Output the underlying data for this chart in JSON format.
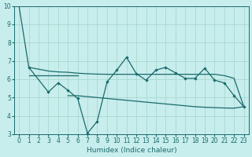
{
  "xlabel": "Humidex (Indice chaleur)",
  "background_color": "#c8eded",
  "grid_color": "#a8d8d0",
  "line_color": "#1a6b6b",
  "xlim": [
    -0.5,
    23.5
  ],
  "ylim": [
    3,
    10
  ],
  "yticks": [
    3,
    4,
    5,
    6,
    7,
    8,
    9,
    10
  ],
  "xticks": [
    0,
    1,
    2,
    3,
    4,
    5,
    6,
    7,
    8,
    9,
    10,
    11,
    12,
    13,
    14,
    15,
    16,
    17,
    18,
    19,
    20,
    21,
    22,
    23
  ],
  "line1_x": [
    0,
    1,
    2,
    3,
    4,
    5,
    6,
    7,
    8,
    9,
    10,
    11,
    12,
    13,
    14,
    15,
    16,
    17,
    18,
    19,
    20,
    21,
    22,
    23
  ],
  "line1_y": [
    10.0,
    6.65,
    6.55,
    6.45,
    6.4,
    6.38,
    6.33,
    6.3,
    6.28,
    6.27,
    6.27,
    6.27,
    6.27,
    6.27,
    6.27,
    6.27,
    6.27,
    6.27,
    6.27,
    6.27,
    6.27,
    6.2,
    6.05,
    4.5
  ],
  "line2_x": [
    1,
    2,
    3,
    4,
    5,
    6
  ],
  "line2_y": [
    6.2,
    6.2,
    6.2,
    6.2,
    6.2,
    6.2
  ],
  "line3_x": [
    1,
    3,
    4,
    5,
    6,
    7,
    8,
    9,
    10,
    11,
    12,
    13,
    14,
    15,
    16,
    17,
    18,
    19,
    20,
    21,
    22,
    23
  ],
  "line3_y": [
    6.65,
    5.3,
    5.8,
    5.4,
    4.95,
    3.05,
    3.7,
    5.85,
    6.5,
    7.2,
    6.3,
    5.95,
    6.5,
    6.65,
    6.35,
    6.05,
    6.05,
    6.6,
    5.95,
    5.8,
    5.1,
    4.5
  ],
  "line4_x": [
    5,
    6,
    7,
    8,
    9,
    10,
    11,
    12,
    13,
    14,
    15,
    16,
    17,
    18,
    19,
    20,
    21,
    22,
    23
  ],
  "line4_y": [
    5.1,
    5.1,
    5.05,
    5.0,
    4.95,
    4.9,
    4.85,
    4.8,
    4.75,
    4.7,
    4.65,
    4.6,
    4.55,
    4.5,
    4.47,
    4.45,
    4.43,
    4.42,
    4.5
  ]
}
